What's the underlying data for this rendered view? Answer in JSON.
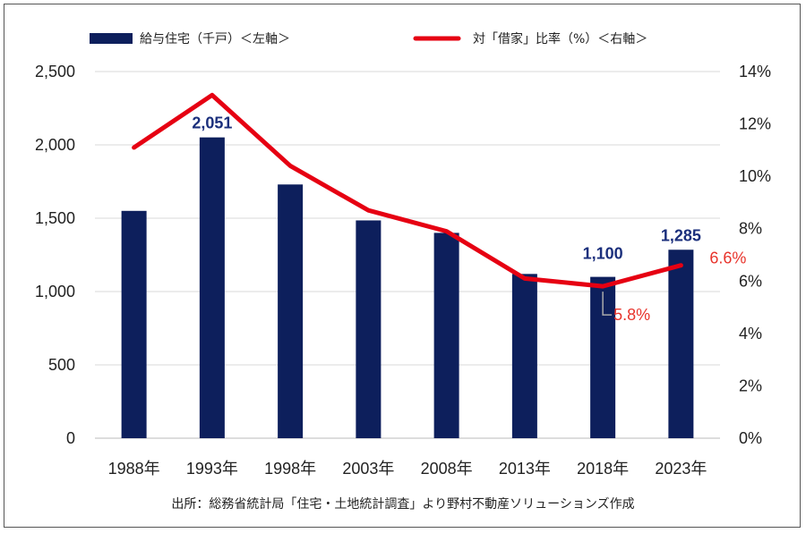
{
  "chart_data": {
    "type": "bar+line",
    "categories": [
      "1988年",
      "1993年",
      "1998年",
      "2003年",
      "2008年",
      "2013年",
      "2018年",
      "2023年"
    ],
    "series": [
      {
        "name": "給与住宅（千戸）＜左軸＞",
        "type": "bar",
        "axis": "left",
        "color": "#0d1f5c",
        "values": [
          1550,
          2051,
          1730,
          1485,
          1400,
          1120,
          1100,
          1285
        ]
      },
      {
        "name": "対「借家」比率（%）＜右軸＞",
        "type": "line",
        "axis": "right",
        "color": "#e60012",
        "values": [
          11.1,
          13.1,
          10.4,
          8.7,
          7.9,
          6.1,
          5.8,
          6.6
        ]
      }
    ],
    "y_left": {
      "ylim": [
        0,
        2500
      ],
      "ticks": [
        "0",
        "500",
        "1,000",
        "1,500",
        "2,000",
        "2,500"
      ]
    },
    "y_right": {
      "ylim": [
        0,
        14
      ],
      "ticks": [
        "0%",
        "2%",
        "4%",
        "6%",
        "8%",
        "10%",
        "12%",
        "14%"
      ]
    },
    "bar_labels": [
      {
        "index": 1,
        "text": "2,051"
      },
      {
        "index": 6,
        "text": "1,100"
      },
      {
        "index": 7,
        "text": "1,285"
      }
    ],
    "line_labels": [
      {
        "index": 6,
        "text": "5.8%"
      },
      {
        "index": 7,
        "text": "6.6%"
      }
    ],
    "grid": true,
    "legend_position": "top",
    "source": "出所：総務省統計局「住宅・土地統計調査」より野村不動産ソリューションズ作成"
  }
}
